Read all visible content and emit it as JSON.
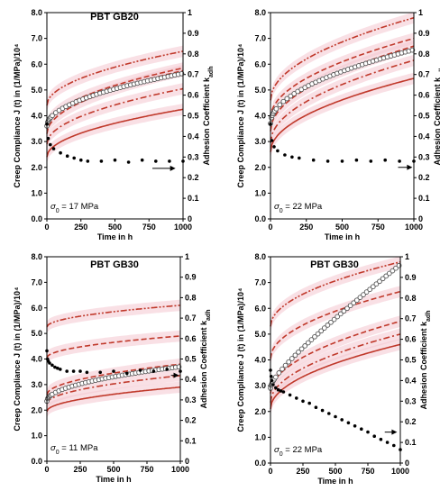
{
  "colors": {
    "model": "#c0392b",
    "band": "#f4c7cf",
    "measured": "#555555",
    "adhesion": "#000000"
  },
  "chart_data": [
    {
      "type": "line",
      "title": "PBT GB20",
      "annotation": "σ0 = 17 MPa",
      "annotation_symbol": "σ",
      "annotation_sub": "0",
      "annotation_rest": " = 17 MPa",
      "xlabel": "Time in h",
      "ylabel": "Creep Compliance J (t) in (1/MPa)/10⁴",
      "y2label": "Adhesion Coefficient k_adh",
      "y2label_main": "Adhesion Coefficient k",
      "y2label_sub": "adh",
      "xlim": [
        0,
        1000
      ],
      "ylim": [
        0,
        8
      ],
      "y2lim": [
        0,
        1
      ],
      "xticks": [
        "0",
        "250",
        "500",
        "750",
        "1000"
      ],
      "yticks": [
        "0.0",
        "1.0",
        "2.0",
        "3.0",
        "4.0",
        "5.0",
        "6.0",
        "7.0",
        "8.0"
      ],
      "y2ticks": [
        "0",
        "0.1",
        "0.2",
        "0.3",
        "0.4",
        "0.5",
        "0.6",
        "0.7",
        "0.8",
        "0.9",
        "1"
      ],
      "model_curves": [
        {
          "style": "solid",
          "a": 2.4,
          "b": 1.85
        },
        {
          "style": "dashdot",
          "a": 2.9,
          "b": 2.15
        },
        {
          "style": "dashed",
          "a": 3.3,
          "b": 2.45
        },
        {
          "style": "dashed",
          "a": 3.55,
          "b": 2.3
        },
        {
          "style": "dashdotdot",
          "a": 4.4,
          "b": 2.1
        }
      ],
      "measured": {
        "a": 3.6,
        "b": 2.0,
        "k": 0.04,
        "p": 0.6
      },
      "adhesion": {
        "x": [
          0,
          10,
          25,
          50,
          100,
          150,
          200,
          250,
          300,
          400,
          500,
          600,
          700,
          800,
          900,
          1000
        ],
        "y": [
          0.46,
          0.39,
          0.36,
          0.34,
          0.32,
          0.305,
          0.295,
          0.285,
          0.28,
          0.28,
          0.285,
          0.275,
          0.285,
          0.28,
          0.28,
          0.28
        ]
      },
      "arrow": {
        "x1": 775,
        "x2": 945,
        "y2": 0.245
      }
    },
    {
      "type": "line",
      "title": "",
      "annotation": "σ0 = 22 MPa",
      "annotation_symbol": "σ",
      "annotation_sub": "0",
      "annotation_rest": " = 22 MPa",
      "xlabel": "Time in h",
      "ylabel": "Creep Compliance J (t) in (1/MPa)/10⁴",
      "y2label": "Adhesion Coefficient k_adh",
      "y2label_main": "Adhesion Coefficient k",
      "y2label_sub": "adh",
      "xlim": [
        0,
        1000
      ],
      "ylim": [
        0,
        8
      ],
      "y2lim": [
        0,
        1
      ],
      "xticks": [
        "0",
        "250",
        "500",
        "750",
        "1000"
      ],
      "yticks": [
        "0.0",
        "1.0",
        "2.0",
        "3.0",
        "4.0",
        "5.0",
        "6.0",
        "7.0",
        "8.0"
      ],
      "y2ticks": [
        "0",
        "0.1",
        "0.2",
        "0.3",
        "0.4",
        "0.5",
        "0.6",
        "0.7",
        "0.8",
        "0.9",
        "1"
      ],
      "model_curves": [
        {
          "style": "solid",
          "a": 2.6,
          "b": 2.85
        },
        {
          "style": "dashdot",
          "a": 2.95,
          "b": 3.2
        },
        {
          "style": "dashed",
          "a": 3.4,
          "b": 3.3
        },
        {
          "style": "dashed",
          "a": 3.9,
          "b": 3.1
        },
        {
          "style": "dashdotdot",
          "a": 4.6,
          "b": 3.2
        }
      ],
      "measured": {
        "a": 3.7,
        "b": 2.8,
        "k": 0.06,
        "p": 0.62
      },
      "adhesion": {
        "x": [
          0,
          10,
          25,
          50,
          100,
          150,
          200,
          300,
          400,
          500,
          600,
          700,
          800,
          900,
          1000
        ],
        "y": [
          0.46,
          0.38,
          0.35,
          0.33,
          0.31,
          0.3,
          0.295,
          0.285,
          0.28,
          0.28,
          0.285,
          0.28,
          0.285,
          0.28,
          0.28
        ]
      },
      "arrow": {
        "x1": 890,
        "x2": 990,
        "y2": 0.25
      }
    },
    {
      "type": "line",
      "title": "PBT GB30",
      "annotation": "σ0 = 11 MPa",
      "annotation_symbol": "σ",
      "annotation_sub": "0",
      "annotation_rest": " = 11 MPa",
      "xlabel": "Time in h",
      "ylabel": "Creep Compliance J (t) in (1/MPa)/10⁴",
      "y2label": "Adhesion Coefficient k_adh",
      "y2label_main": "Adhesion Coefficient k",
      "y2label_sub": "adh",
      "xlim": [
        0,
        1000
      ],
      "ylim": [
        0,
        8
      ],
      "y2lim": [
        0,
        1
      ],
      "xticks": [
        "0",
        "250",
        "500",
        "750",
        "1000"
      ],
      "yticks": [
        "0.0",
        "1.0",
        "2.0",
        "3.0",
        "4.0",
        "5.0",
        "6.0",
        "7.0",
        "8.0"
      ],
      "y2ticks": [
        "0",
        "0.1",
        "0.2",
        "0.3",
        "0.4",
        "0.5",
        "0.6",
        "0.7",
        "0.8",
        "0.9",
        "1"
      ],
      "model_curves": [
        {
          "style": "solid",
          "a": 1.95,
          "b": 0.95
        },
        {
          "style": "dashdot",
          "a": 2.25,
          "b": 1.1
        },
        {
          "style": "dashed",
          "a": 2.6,
          "b": 1.2
        },
        {
          "style": "dashed",
          "a": 4.05,
          "b": 0.85
        },
        {
          "style": "dashdotdot",
          "a": 5.25,
          "b": 0.85
        }
      ],
      "measured": {
        "a": 2.35,
        "b": 1.35,
        "k": 0.0,
        "p": 1
      },
      "adhesion": {
        "x": [
          0,
          5,
          10,
          20,
          40,
          60,
          80,
          100,
          150,
          200,
          250,
          300,
          400,
          500,
          600,
          700,
          800,
          900,
          1000
        ],
        "y": [
          0.54,
          0.5,
          0.49,
          0.48,
          0.47,
          0.46,
          0.455,
          0.45,
          0.44,
          0.44,
          0.44,
          0.435,
          0.435,
          0.44,
          0.43,
          0.445,
          0.44,
          0.45,
          0.44
        ]
      },
      "arrow": {
        "x1": 930,
        "x2": 990,
        "y2": 0.42
      }
    },
    {
      "type": "line",
      "title": "PBT GB30",
      "annotation": "σ0 = 22 MPa",
      "annotation_symbol": "σ",
      "annotation_sub": "0",
      "annotation_rest": " = 22 MPa",
      "xlabel": "Time in h",
      "ylabel": "Creep Compliance J (t) in (1/MPa)/10⁴",
      "y2label": "Adhesion Coefficient k_adh",
      "y2label_main": "Adhesion Coefficient k",
      "y2label_sub": "adh",
      "xlim": [
        0,
        1000
      ],
      "ylim": [
        0,
        8
      ],
      "y2lim": [
        0,
        1
      ],
      "xticks": [
        "0",
        "250",
        "500",
        "750",
        "1000"
      ],
      "yticks": [
        "0.0",
        "1.0",
        "2.0",
        "3.0",
        "4.0",
        "5.0",
        "6.0",
        "7.0",
        "8.0"
      ],
      "y2ticks": [
        "0",
        "0.1",
        "0.2",
        "0.3",
        "0.4",
        "0.5",
        "0.6",
        "0.7",
        "0.8",
        "0.9",
        "1"
      ],
      "model_curves": [
        {
          "style": "solid",
          "a": 2.1,
          "b": 2.5
        },
        {
          "style": "dashdot",
          "a": 2.35,
          "b": 2.65
        },
        {
          "style": "dashed",
          "a": 2.7,
          "b": 2.8
        },
        {
          "style": "dashed",
          "a": 4.05,
          "b": 2.6
        },
        {
          "style": "dashdotdot",
          "a": 5.3,
          "b": 2.5
        }
      ],
      "measured": {
        "a": 2.9,
        "b": 1.5,
        "k": 3.3,
        "p": 1
      },
      "adhesion": {
        "x": [
          0,
          5,
          10,
          20,
          40,
          60,
          80,
          100,
          150,
          200,
          250,
          300,
          350,
          400,
          450,
          500,
          550,
          600,
          650,
          700,
          750,
          800,
          850,
          900,
          950,
          1000
        ],
        "y": [
          0.45,
          0.42,
          0.4,
          0.38,
          0.365,
          0.355,
          0.35,
          0.345,
          0.33,
          0.315,
          0.3,
          0.29,
          0.27,
          0.255,
          0.24,
          0.225,
          0.21,
          0.195,
          0.18,
          0.165,
          0.15,
          0.13,
          0.115,
          0.1,
          0.085,
          0.065
        ]
      },
      "arrow": {
        "x1": 880,
        "x2": 975,
        "y2": 0.15
      }
    }
  ]
}
